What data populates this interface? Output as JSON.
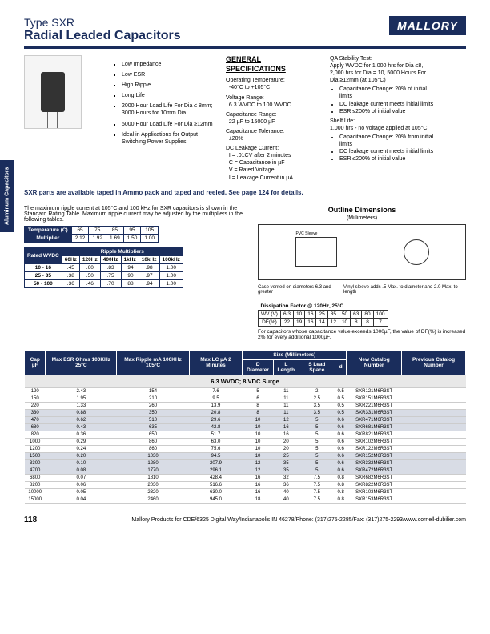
{
  "header": {
    "type": "Type SXR",
    "title": "Radial Leaded Capacitors",
    "logo": "MALLORY"
  },
  "features": [
    "Low Impedance",
    "Low ESR",
    "High Ripple",
    "Long Life",
    "2000 Hour Load Life For Dia ≤ 8mm; 3000 Hours for 10mm Dia",
    "5000 Hour Load Life For Dia ≥12mm",
    "Ideal in Applications for Output Switching Power Supplies"
  ],
  "note": "SXR parts are available taped in Ammo pack and taped and reeled. See page 124 for details.",
  "genspec": {
    "title": "GENERAL SPECIFICATIONS",
    "items": [
      {
        "l": "Operating Temperature:",
        "v": "-40°C to +105°C"
      },
      {
        "l": "Voltage Range:",
        "v": "6.3 WVDC to 100 WVDC"
      },
      {
        "l": "Capacitance Range:",
        "v": "22 µF to 15000 µF"
      },
      {
        "l": "Capacitance Tolerance:",
        "v": "±20%"
      },
      {
        "l": "DC Leakage Current:",
        "v": "I = .01CV after 2 minutes\nC = Capacitance in µF\nV = Rated Voltage\nI = Leakage Current in µA"
      }
    ]
  },
  "qa": {
    "items": [
      {
        "l": "QA Stability Test:",
        "v": "Apply WVDC for 1,000 hrs for Dia ≤8, 2,000 hrs for Dia = 10, 5000 Hours For Dia ≥12mm (at 105°C)",
        "bullets": [
          "Capacitance Change: 20% of initial limits",
          "DC leakage current meets initial limits",
          "ESR ≤200% of initial value"
        ]
      },
      {
        "l": "Shelf Life:",
        "v": "1,000 hrs - no voltage applied at 105°C",
        "bullets": [
          "Capacitance Change: 20% from initial limits",
          "DC leakage current meets initial limits",
          "ESR ≤200% of initial value"
        ]
      }
    ]
  },
  "temp_intro": "The maximum ripple current at 105°C and 100 kHz for SXR capacitors is shown in the Standard Rating Table. Maximum ripple current may be adjusted by the multipliers in the following tables.",
  "temp_table": {
    "h": [
      "Temperature (C)",
      "65",
      "75",
      "85",
      "95",
      "105"
    ],
    "r": [
      "Multiplier",
      "2.12",
      "1.92",
      "1.69",
      "1.50",
      "1.00"
    ]
  },
  "ripple_table": {
    "h1": "Rated WVDC",
    "h2": "Ripple Multipliers",
    "freqs": [
      "60Hz",
      "120Hz",
      "400Hz",
      "1kHz",
      "10kHz",
      "100kHz"
    ],
    "rows": [
      [
        "10 - 16",
        ".45",
        ".60",
        ".83",
        ".94",
        ".98",
        "1.00"
      ],
      [
        "25 - 35",
        ".38",
        ".50",
        ".75",
        ".90",
        ".97",
        "1.00"
      ],
      [
        "50 - 100",
        ".36",
        ".46",
        ".70",
        ".88",
        ".94",
        "1.00"
      ]
    ]
  },
  "outline": {
    "title": "Outline Dimensions",
    "sub": "(Millimeters)",
    "notes": [
      "Case vented on diameters 6.3 and greater",
      "Vinyl sleeve adds .5 Max. to diameter and 2.0 Max. to length"
    ],
    "labels": [
      "PVC Sleeve",
      "d ±0.5",
      "S ±0.5",
      "15 Min.",
      "L",
      "D"
    ]
  },
  "diss": {
    "title": "Dissipation Factor @ 120Hz, 25°C",
    "h": [
      "WV (V)",
      "6.3",
      "10",
      "16",
      "25",
      "35",
      "50",
      "63",
      "80",
      "100"
    ],
    "r": [
      "DF(%)",
      "22",
      "19",
      "16",
      "14",
      "12",
      "10",
      "8",
      "8",
      "7"
    ],
    "note": "For capacitors whose capacitance value exceeds 1000µF, the value of DF(%) is increased 2% for every additional 1000µF."
  },
  "main": {
    "headers": [
      "Cap µF",
      "Max ESR Ohms 100KHz 25°C",
      "Max Ripple mA 100KHz 105°C",
      "Max LC µA 2 Minutes",
      "D Diameter",
      "L Length",
      "S Lead Space",
      "d",
      "New Catalog Number",
      "Previous Catalog Number"
    ],
    "sizegroup": "Size (Millimeters)",
    "section": "6.3 WVDC;  8 VDC Surge",
    "rows": [
      [
        "120",
        "2.43",
        "154",
        "7.6",
        "5",
        "11",
        "2",
        "0.5",
        "SXR121M6R3ST",
        ""
      ],
      [
        "150",
        "1.95",
        "210",
        "9.5",
        "6",
        "11",
        "2.5",
        "0.5",
        "SXR151M6R3ST",
        ""
      ],
      [
        "220",
        "1.33",
        "260",
        "13.9",
        "8",
        "11",
        "3.5",
        "0.5",
        "SXR221M6R3ST",
        ""
      ],
      [
        "330",
        "0.88",
        "350",
        "20.8",
        "8",
        "11",
        "3.5",
        "0.5",
        "SXR331M6R3ST",
        ""
      ],
      [
        "470",
        "0.62",
        "510",
        "29.6",
        "10",
        "12",
        "5",
        "0.6",
        "SXR471M6R3ST",
        ""
      ],
      [
        "680",
        "0.43",
        "635",
        "42.8",
        "10",
        "16",
        "5",
        "0.6",
        "SXR681M6R3ST",
        ""
      ],
      [
        "820",
        "0.36",
        "650",
        "51.7",
        "10",
        "16",
        "5",
        "0.6",
        "SXR821M6R3ST",
        ""
      ],
      [
        "1000",
        "0.29",
        "860",
        "63.0",
        "10",
        "20",
        "5",
        "0.6",
        "SXR102M6R3ST",
        ""
      ],
      [
        "1200",
        "0.24",
        "860",
        "75.6",
        "10",
        "20",
        "5",
        "0.6",
        "SXR122M6R3ST",
        ""
      ],
      [
        "1500",
        "0.20",
        "1030",
        "94.5",
        "10",
        "25",
        "5",
        "0.6",
        "SXR152M6R3ST",
        ""
      ],
      [
        "3300",
        "0.10",
        "1280",
        "207.9",
        "12",
        "35",
        "5",
        "0.6",
        "SXR332M6R3ST",
        ""
      ],
      [
        "4700",
        "0.08",
        "1770",
        "296.1",
        "12",
        "35",
        "5",
        "0.6",
        "SXR472M6R3ST",
        ""
      ],
      [
        "6800",
        "0.07",
        "1810",
        "428.4",
        "16",
        "32",
        "7.5",
        "0.8",
        "SXR682M6R3ST",
        ""
      ],
      [
        "8200",
        "0.06",
        "2030",
        "516.6",
        "16",
        "36",
        "7.5",
        "0.8",
        "SXR822M6R3ST",
        ""
      ],
      [
        "10000",
        "0.05",
        "2320",
        "630.0",
        "16",
        "40",
        "7.5",
        "0.8",
        "SXR103M6R3ST",
        ""
      ],
      [
        "15000",
        "0.04",
        "2460",
        "945.0",
        "18",
        "40",
        "7.5",
        "0.8",
        "SXR153M6R3ST",
        ""
      ]
    ],
    "shaded": [
      3,
      4,
      5,
      9,
      10,
      11
    ]
  },
  "footer": {
    "page": "118",
    "text": "Mallory Products for CDE/6325 Digital Way/Indianapolis IN 46278/Phone: (317)275-2285/Fax: (317)275-2293/www.cornell-dubilier.com"
  },
  "sidebar": "Aluminum Capacitors"
}
